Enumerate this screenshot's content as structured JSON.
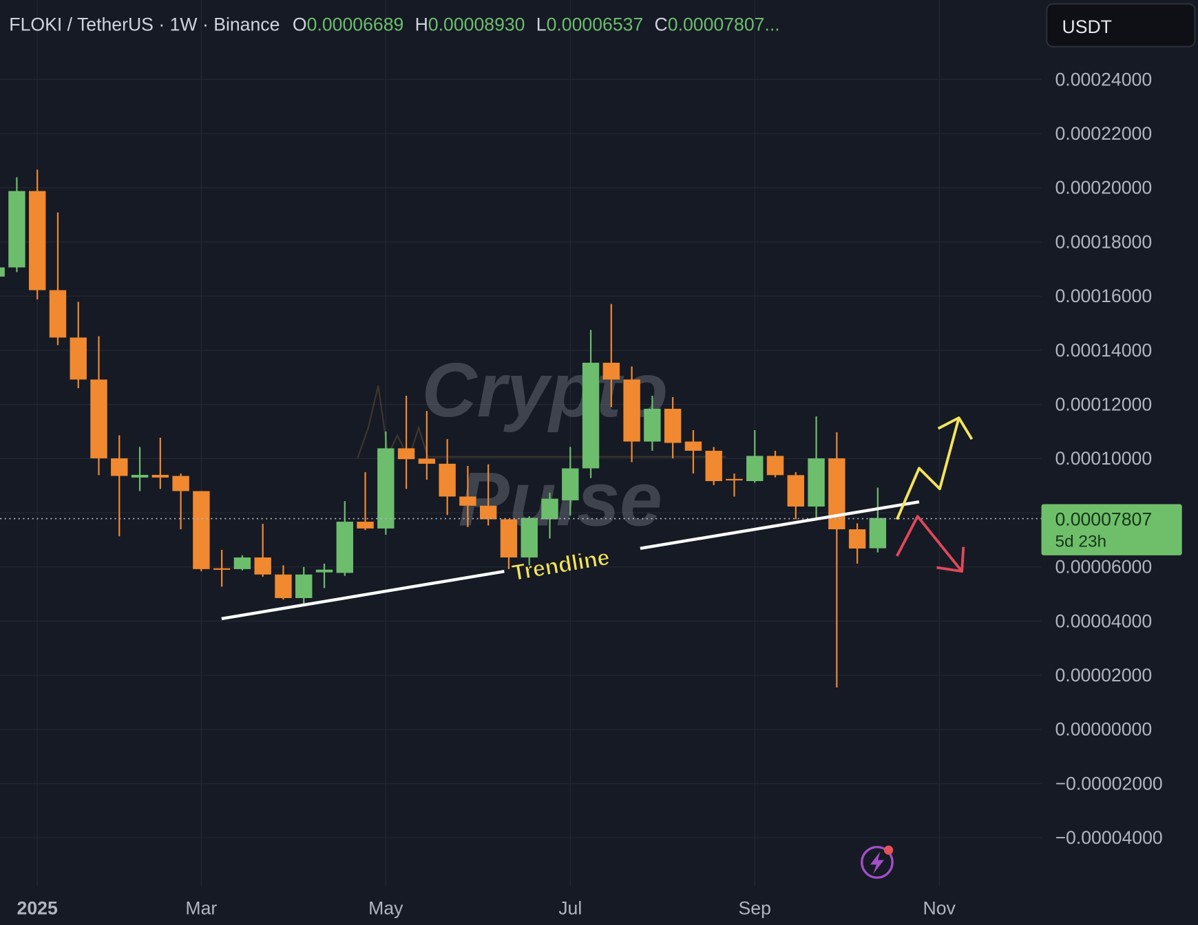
{
  "header": {
    "symbol": "FLOKI / TetherUS · 1W · Binance",
    "o_label": "O",
    "o_value": "0.00006689",
    "h_label": "H",
    "h_value": "0.00008930",
    "l_label": "L",
    "l_value": "0.00006537",
    "c_label": "C",
    "c_value": "0.00007807..."
  },
  "currency_button": "USDT",
  "last_price": {
    "value": "0.00007807",
    "countdown": "5d 23h"
  },
  "watermark": {
    "line1": "Crypto",
    "line2": "Pulse"
  },
  "annotation": {
    "trendline_label": "Trendline"
  },
  "colors": {
    "background": "#161a25",
    "grid": "#232733",
    "up": "#6cbd6c",
    "down": "#f0892f",
    "trendline": "#ffffff",
    "bull_arrow": "#f3e45a",
    "bear_arrow": "#e0485a",
    "price_tag": "#6fbf6a"
  },
  "icons": {
    "alert": "lightning-icon"
  },
  "chart_data": {
    "type": "candlestick",
    "title": "",
    "xlabel": "",
    "ylabel": "",
    "ylim": [
      -4e-05,
      0.00024
    ],
    "grid": true,
    "y_ticks": [
      "0.00024000",
      "0.00022000",
      "0.00020000",
      "0.00018000",
      "0.00016000",
      "0.00014000",
      "0.00012000",
      "0.00010000",
      "0.00008000",
      "0.00006000",
      "0.00004000",
      "0.00002000",
      "0.00000000",
      "−0.00002000",
      "−0.00004000"
    ],
    "x_ticks": [
      "2025",
      "Mar",
      "May",
      "Jul",
      "Sep",
      "Nov"
    ],
    "candles": [
      {
        "t": "2024-12-23",
        "o": 0.0001672,
        "h": 0.000172,
        "l": 0.000166,
        "c": 0.0001706
      },
      {
        "t": "2024-12-30",
        "o": 0.0001706,
        "h": 0.0002039,
        "l": 0.0001689,
        "c": 0.0001988
      },
      {
        "t": "2025-01-06",
        "o": 0.0001988,
        "h": 0.0002067,
        "l": 0.0001588,
        "c": 0.0001622
      },
      {
        "t": "2025-01-13",
        "o": 0.0001622,
        "h": 0.0001909,
        "l": 0.0001419,
        "c": 0.0001447
      },
      {
        "t": "2025-01-20",
        "o": 0.0001447,
        "h": 0.0001579,
        "l": 0.000126,
        "c": 0.0001292
      },
      {
        "t": "2025-01-27",
        "o": 0.0001292,
        "h": 0.0001452,
        "l": 9.39e-05,
        "c": 0.0001001
      },
      {
        "t": "2025-02-03",
        "o": 0.0001001,
        "h": 0.0001086,
        "l": 7.13e-05,
        "c": 9.36e-05
      },
      {
        "t": "2025-02-10",
        "o": 9.3e-05,
        "h": 0.0001043,
        "l": 8.8e-05,
        "c": 9.4e-05
      },
      {
        "t": "2025-02-17",
        "o": 9.4e-05,
        "h": 0.0001077,
        "l": 8.88e-05,
        "c": 9.3e-05
      },
      {
        "t": "2025-02-24",
        "o": 9.36e-05,
        "h": 9.45e-05,
        "l": 7.39e-05,
        "c": 8.8e-05
      },
      {
        "t": "2025-03-03",
        "o": 8.8e-05,
        "h": 8.8e-05,
        "l": 5.84e-05,
        "c": 5.92e-05
      },
      {
        "t": "2025-03-10",
        "o": 5.95e-05,
        "h": 6.63e-05,
        "l": 5.27e-05,
        "c": 5.9e-05
      },
      {
        "t": "2025-03-17",
        "o": 5.92e-05,
        "h": 6.43e-05,
        "l": 5.87e-05,
        "c": 6.35e-05
      },
      {
        "t": "2025-03-24",
        "o": 6.35e-05,
        "h": 7.59e-05,
        "l": 5.64e-05,
        "c": 5.72e-05
      },
      {
        "t": "2025-03-31",
        "o": 5.72e-05,
        "h": 6.06e-05,
        "l": 4.79e-05,
        "c": 4.85e-05
      },
      {
        "t": "2025-04-07",
        "o": 4.85e-05,
        "h": 6e-05,
        "l": 4.65e-05,
        "c": 5.72e-05
      },
      {
        "t": "2025-04-14",
        "o": 5.8e-05,
        "h": 6.12e-05,
        "l": 5.22e-05,
        "c": 5.9e-05
      },
      {
        "t": "2025-04-21",
        "o": 5.78e-05,
        "h": 8.43e-05,
        "l": 5.67e-05,
        "c": 7.67e-05
      },
      {
        "t": "2025-04-28",
        "o": 7.67e-05,
        "h": 9.5e-05,
        "l": 7.36e-05,
        "c": 7.42e-05
      },
      {
        "t": "2025-05-05",
        "o": 7.42e-05,
        "h": 0.00011,
        "l": 7.19e-05,
        "c": 0.0001038
      },
      {
        "t": "2025-05-12",
        "o": 0.0001038,
        "h": 0.0001232,
        "l": 8.88e-05,
        "c": 9.98e-05
      },
      {
        "t": "2025-05-19",
        "o": 0.0001,
        "h": 0.0001176,
        "l": 9.22e-05,
        "c": 9.81e-05
      },
      {
        "t": "2025-05-26",
        "o": 9.81e-05,
        "h": 0.0001072,
        "l": 7.92e-05,
        "c": 8.6e-05
      },
      {
        "t": "2025-06-02",
        "o": 8.6e-05,
        "h": 9.73e-05,
        "l": 7.47e-05,
        "c": 8.26e-05
      },
      {
        "t": "2025-06-09",
        "o": 8.26e-05,
        "h": 9.79e-05,
        "l": 7.53e-05,
        "c": 7.76e-05
      },
      {
        "t": "2025-06-16",
        "o": 7.76e-05,
        "h": 7.76e-05,
        "l": 5.92e-05,
        "c": 6.35e-05
      },
      {
        "t": "2025-06-23",
        "o": 6.35e-05,
        "h": 7.87e-05,
        "l": 6.06e-05,
        "c": 7.81e-05
      },
      {
        "t": "2025-06-30",
        "o": 7.76e-05,
        "h": 8.74e-05,
        "l": 7.05e-05,
        "c": 8.52e-05
      },
      {
        "t": "2025-07-07",
        "o": 8.46e-05,
        "h": 0.0001043,
        "l": 7.9e-05,
        "c": 9.64e-05
      },
      {
        "t": "2025-07-14",
        "o": 9.64e-05,
        "h": 0.0001475,
        "l": 9.28e-05,
        "c": 0.0001354
      },
      {
        "t": "2025-07-21",
        "o": 0.0001354,
        "h": 0.0001571,
        "l": 0.000119,
        "c": 0.0001292
      },
      {
        "t": "2025-07-28",
        "o": 0.0001292,
        "h": 0.000134,
        "l": 9.87e-05,
        "c": 0.0001063
      },
      {
        "t": "2025-08-04",
        "o": 0.0001063,
        "h": 0.0001232,
        "l": 0.0001029,
        "c": 0.0001184
      },
      {
        "t": "2025-08-11",
        "o": 0.0001184,
        "h": 0.0001227,
        "l": 0.0001001,
        "c": 0.0001058
      },
      {
        "t": "2025-08-18",
        "o": 0.0001063,
        "h": 0.0001105,
        "l": 9.45e-05,
        "c": 0.0001029
      },
      {
        "t": "2025-08-25",
        "o": 0.0001029,
        "h": 0.0001043,
        "l": 9.02e-05,
        "c": 9.17e-05
      },
      {
        "t": "2025-09-01",
        "o": 9.25e-05,
        "h": 9.45e-05,
        "l": 8.6e-05,
        "c": 9.2e-05
      },
      {
        "t": "2025-09-08",
        "o": 9.17e-05,
        "h": 0.0001105,
        "l": 9.11e-05,
        "c": 0.000101
      },
      {
        "t": "2025-09-15",
        "o": 0.000101,
        "h": 0.0001029,
        "l": 9.31e-05,
        "c": 9.39e-05
      },
      {
        "t": "2025-09-22",
        "o": 9.39e-05,
        "h": 9.5e-05,
        "l": 7.76e-05,
        "c": 8.23e-05
      },
      {
        "t": "2025-09-29",
        "o": 8.23e-05,
        "h": 0.0001156,
        "l": 7.76e-05,
        "c": 0.0001001
      },
      {
        "t": "2025-10-06",
        "o": 0.0001001,
        "h": 0.0001097,
        "l": 1.55e-05,
        "c": 7.39e-05
      },
      {
        "t": "2025-10-13",
        "o": 7.39e-05,
        "h": 7.61e-05,
        "l": 6.12e-05,
        "c": 6.68e-05
      },
      {
        "t": "2025-10-20",
        "o": 6.689e-05,
        "h": 8.93e-05,
        "l": 6.537e-05,
        "c": 7.807e-05
      }
    ]
  }
}
